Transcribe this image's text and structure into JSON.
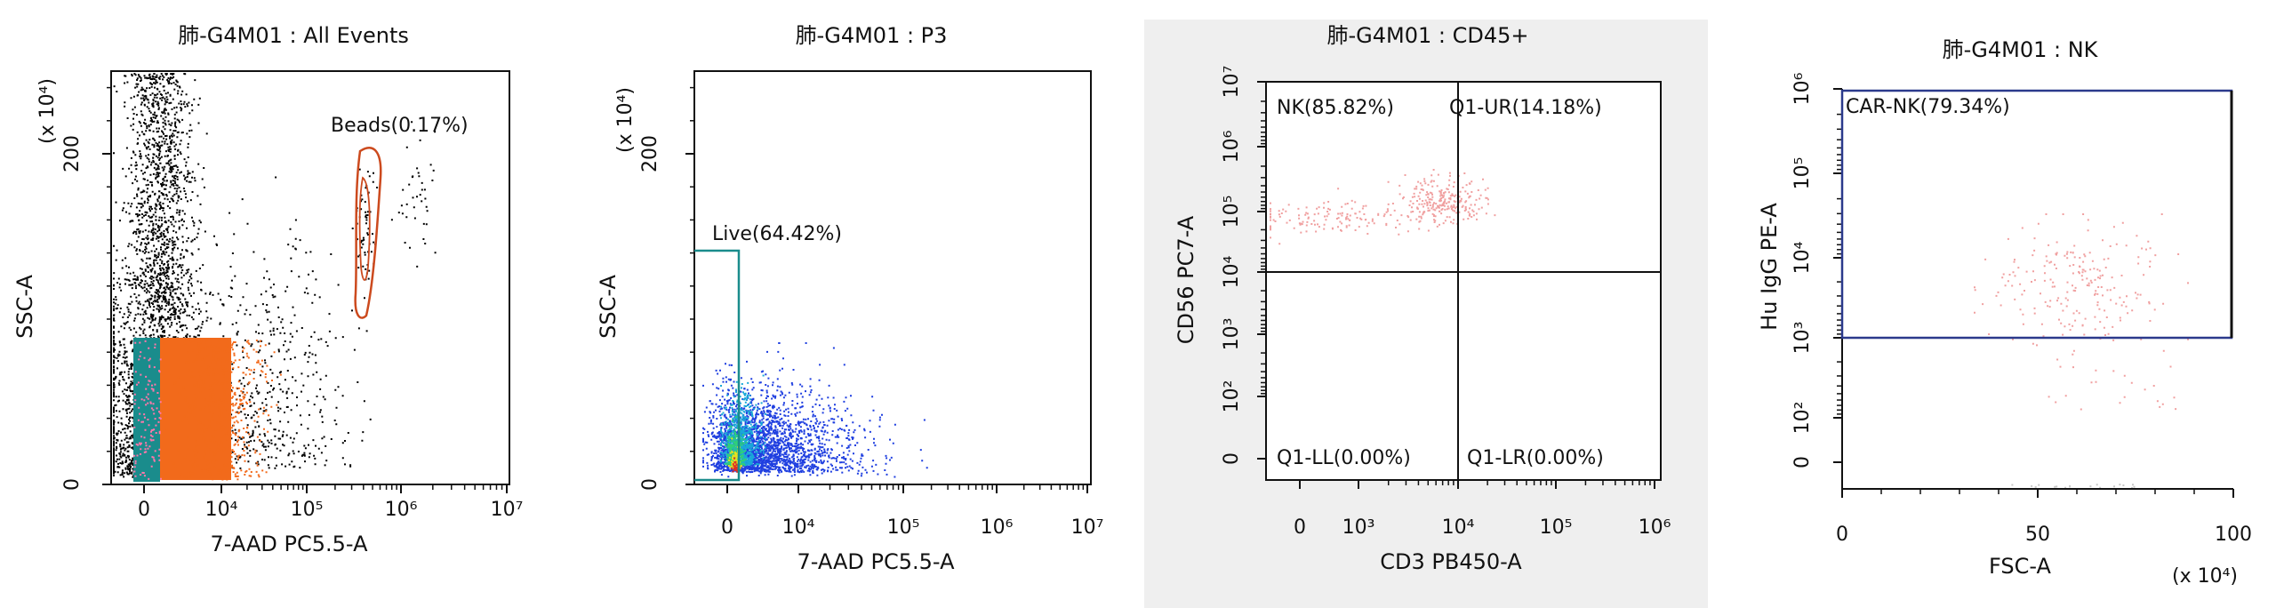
{
  "chart_data": [
    {
      "type": "scatter",
      "title": "肺-G4M01 : All Events",
      "xlabel": "7-AAD PC5.5-A",
      "ylabel": "SSC-A",
      "y_multiplier": "(x 10⁴)",
      "x_scale": "log",
      "x_ticks": [
        "0",
        "10⁴",
        "10⁵",
        "10⁶",
        "10⁷"
      ],
      "y_ticks": [
        "0",
        "200"
      ],
      "ylim": [
        0,
        250
      ],
      "gates": [
        {
          "name": "Beads",
          "label": "Beads(0.17%)",
          "percent": 0.17,
          "color": "#cc4a1e"
        }
      ],
      "series": [
        {
          "color": "#000000",
          "points": 1200
        },
        {
          "color": "#f26a1b",
          "points": 900
        },
        {
          "color": "#1a8c8c",
          "points": 300
        }
      ]
    },
    {
      "type": "scatter",
      "title": "肺-G4M01 : P3",
      "xlabel": "7-AAD PC5.5-A",
      "ylabel": "SSC-A",
      "y_multiplier": "(x 10⁴)",
      "x_scale": "log",
      "x_ticks": [
        "0",
        "10⁴",
        "10⁵",
        "10⁶",
        "10⁷"
      ],
      "y_ticks": [
        "0",
        "200"
      ],
      "ylim": [
        0,
        250
      ],
      "gates": [
        {
          "name": "Live",
          "label": "Live(64.42%)",
          "percent": 64.42,
          "color": "#1a8c8c"
        }
      ]
    },
    {
      "type": "scatter",
      "title": "肺-G4M01 : CD45+",
      "xlabel": "CD3 PB450-A",
      "ylabel": "CD56 PC7-A",
      "x_scale": "log",
      "y_scale": "log",
      "x_ticks": [
        "0",
        "10³",
        "10⁴",
        "10⁵",
        "10⁶"
      ],
      "y_ticks": [
        "0",
        "10²",
        "10³",
        "10⁴",
        "10⁵",
        "10⁶",
        "10⁷"
      ],
      "quadrants": [
        {
          "name": "NK",
          "label": "NK(85.82%)",
          "percent": 85.82
        },
        {
          "name": "Q1-UR",
          "label": "Q1-UR(14.18%)",
          "percent": 14.18
        },
        {
          "name": "Q1-LL",
          "label": "Q1-LL(0.00%)",
          "percent": 0.0
        },
        {
          "name": "Q1-LR",
          "label": "Q1-LR(0.00%)",
          "percent": 0.0
        }
      ],
      "background": "#efefef"
    },
    {
      "type": "scatter",
      "title": "肺-G4M01 : NK",
      "xlabel": "FSC-A",
      "ylabel": "Hu IgG PE-A",
      "x_multiplier": "(x 10⁴)",
      "y_scale": "log",
      "x_ticks": [
        "0",
        "50",
        "100"
      ],
      "y_ticks": [
        "0",
        "10²",
        "10³",
        "10⁴",
        "10⁵",
        "10⁶"
      ],
      "xlim": [
        0,
        100
      ],
      "gates": [
        {
          "name": "CAR-NK",
          "label": "CAR-NK(79.34%)",
          "percent": 79.34,
          "color": "#2b3a8c"
        }
      ]
    }
  ]
}
